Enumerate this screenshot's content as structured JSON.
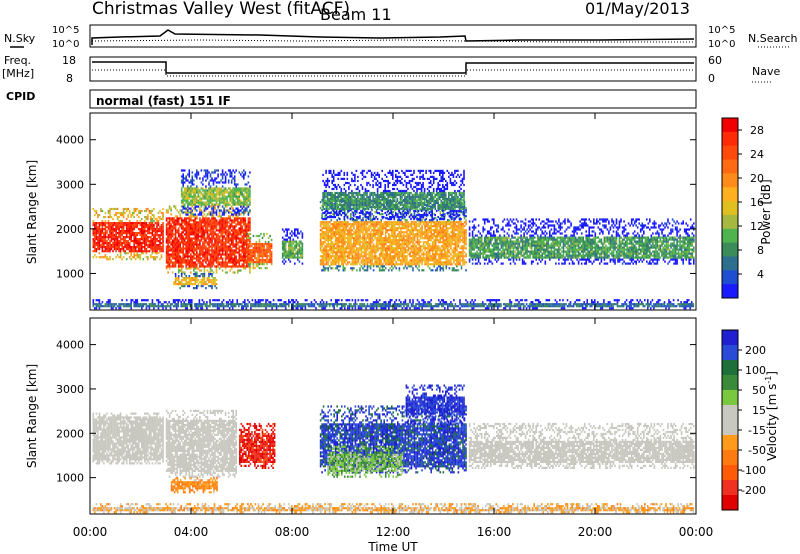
{
  "header": {
    "station": "Christmas Valley West (fitACF)",
    "beam": "Beam 11",
    "date": "01/May/2013"
  },
  "panels": {
    "nsky_label": "N.Sky",
    "nsearch_label": "N.Search",
    "freq_label": "Freq.",
    "freq_unit": "[MHz]",
    "nave_label": "Nave",
    "cpid_label": "CPID",
    "cpid_text": "normal (fast) 151 IF",
    "noise_ticks": [
      "10^5",
      "10^0"
    ],
    "freq_ticks": [
      "18",
      "8"
    ],
    "nave_ticks": [
      "60",
      "0"
    ]
  },
  "chart_data": [
    {
      "type": "heatmap",
      "title": "",
      "xlabel": "Time UT",
      "ylabel": "Slant Range [km]",
      "x_ticks": [
        "00:00",
        "04:00",
        "08:00",
        "12:00",
        "16:00",
        "20:00",
        "00:00"
      ],
      "y_ticks": [
        1000,
        2000,
        3000,
        4000
      ],
      "xlim_hours": [
        0,
        24
      ],
      "ylim_km": [
        180,
        4600
      ],
      "colorbar": {
        "label": "Power [dB]",
        "ticks": [
          4,
          8,
          12,
          16,
          20,
          24,
          28
        ],
        "colors": [
          "#1a1aff",
          "#1f4fd0",
          "#2e6e8e",
          "#3c8c5a",
          "#4fb34f",
          "#a6b840",
          "#e0c020",
          "#ffb020",
          "#ff8c1a",
          "#ff6a12",
          "#ff4a0c",
          "#ff2a06",
          "#f00000"
        ]
      },
      "regions": [
        {
          "h0": 0.1,
          "h1": 2.9,
          "r0": 1300,
          "r1": 2450,
          "core": [
            1450,
            2150
          ],
          "v": 27
        },
        {
          "h0": 3.0,
          "h1": 6.3,
          "r0": 1000,
          "r1": 2500,
          "core": [
            1100,
            2250
          ],
          "v": 26
        },
        {
          "h0": 3.6,
          "h1": 6.3,
          "r0": 2300,
          "r1": 3300,
          "core": [
            2500,
            2900
          ],
          "v": 12
        },
        {
          "h0": 6.2,
          "h1": 7.2,
          "r0": 1100,
          "r1": 1900,
          "core": [
            1200,
            1650
          ],
          "v": 23
        },
        {
          "h0": 3.3,
          "h1": 5.0,
          "r0": 650,
          "r1": 1000,
          "core": [
            700,
            900
          ],
          "v": 16
        },
        {
          "h0": 7.6,
          "h1": 8.4,
          "r0": 1200,
          "r1": 2000,
          "core": [
            1300,
            1700
          ],
          "v": 10
        },
        {
          "h0": 9.1,
          "h1": 14.9,
          "r0": 1050,
          "r1": 2650,
          "core": [
            1150,
            2150
          ],
          "v": 18
        },
        {
          "h0": 9.2,
          "h1": 14.8,
          "r0": 2200,
          "r1": 3300,
          "core": [
            2400,
            2800
          ],
          "v": 8
        },
        {
          "h0": 15.0,
          "h1": 23.9,
          "r0": 1200,
          "r1": 2200,
          "core": [
            1300,
            1800
          ],
          "v": 9
        },
        {
          "h0": 0.1,
          "h1": 23.9,
          "r0": 200,
          "r1": 420,
          "core": [
            220,
            320
          ],
          "v": 6
        }
      ]
    },
    {
      "type": "heatmap",
      "title": "",
      "xlabel": "Time UT",
      "ylabel": "Slant Range [km]",
      "x_ticks": [
        "00:00",
        "04:00",
        "08:00",
        "12:00",
        "16:00",
        "20:00",
        "00:00"
      ],
      "y_ticks": [
        1000,
        2000,
        3000,
        4000
      ],
      "xlim_hours": [
        0,
        24
      ],
      "ylim_km": [
        180,
        4600
      ],
      "colorbar": {
        "label": "Velocity [m s^-1]",
        "ticks": [
          "200",
          "100",
          "50",
          "15",
          "-15",
          "-50",
          "-100",
          "-200"
        ],
        "colors": [
          "#2020d0",
          "#2a4ad8",
          "#1f6f3a",
          "#3a8a3a",
          "#7ac840",
          "#c8c8c0",
          "#c8c8c0",
          "#ff9a1a",
          "#ff7a10",
          "#ff5a08",
          "#f03020",
          "#e00000"
        ]
      },
      "regions": [
        {
          "h0": 0.1,
          "h1": 2.9,
          "r0": 1300,
          "r1": 2450,
          "core": [
            1350,
            2350
          ],
          "v": 0
        },
        {
          "h0": 3.0,
          "h1": 5.8,
          "r0": 1000,
          "r1": 2500,
          "core": [
            1100,
            2300
          ],
          "v": 2
        },
        {
          "h0": 5.9,
          "h1": 7.3,
          "r0": 1200,
          "r1": 2200,
          "core": [
            1300,
            2000
          ],
          "v": -180
        },
        {
          "h0": 3.2,
          "h1": 5.0,
          "r0": 650,
          "r1": 1000,
          "core": [
            700,
            900
          ],
          "v": -70
        },
        {
          "h0": 9.1,
          "h1": 14.9,
          "r0": 1100,
          "r1": 2600,
          "core": [
            1200,
            2200
          ],
          "v": 170
        },
        {
          "h0": 9.4,
          "h1": 12.4,
          "r0": 1000,
          "r1": 1700,
          "core": [
            1100,
            1500
          ],
          "v": 60
        },
        {
          "h0": 12.5,
          "h1": 14.8,
          "r0": 2200,
          "r1": 3100,
          "core": [
            2400,
            2800
          ],
          "v": 190
        },
        {
          "h0": 15.0,
          "h1": 23.9,
          "r0": 1200,
          "r1": 2200,
          "core": [
            1300,
            1800
          ],
          "v": 0
        },
        {
          "h0": 0.1,
          "h1": 23.9,
          "r0": 200,
          "r1": 420,
          "core": [
            220,
            320
          ],
          "v": -40
        }
      ]
    }
  ]
}
